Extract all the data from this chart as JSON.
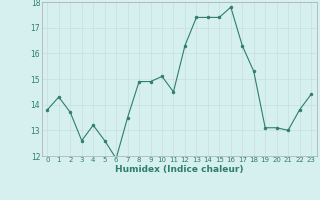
{
  "x": [
    0,
    1,
    2,
    3,
    4,
    5,
    6,
    7,
    8,
    9,
    10,
    11,
    12,
    13,
    14,
    15,
    16,
    17,
    18,
    19,
    20,
    21,
    22,
    23
  ],
  "y": [
    13.8,
    14.3,
    13.7,
    12.6,
    13.2,
    12.6,
    11.9,
    13.5,
    14.9,
    14.9,
    15.1,
    14.5,
    16.3,
    17.4,
    17.4,
    17.4,
    17.8,
    16.3,
    15.3,
    13.1,
    13.1,
    13.0,
    13.8,
    14.4
  ],
  "xlabel": "Humidex (Indice chaleur)",
  "ylim": [
    12,
    18
  ],
  "xlim_min": -0.5,
  "xlim_max": 23.5,
  "yticks": [
    12,
    13,
    14,
    15,
    16,
    17,
    18
  ],
  "xticks": [
    0,
    1,
    2,
    3,
    4,
    5,
    6,
    7,
    8,
    9,
    10,
    11,
    12,
    13,
    14,
    15,
    16,
    17,
    18,
    19,
    20,
    21,
    22,
    23
  ],
  "line_color": "#2e7d6e",
  "marker_color": "#2e7d6e",
  "bg_color": "#d6f0f0",
  "grid_color": "#c8dede"
}
